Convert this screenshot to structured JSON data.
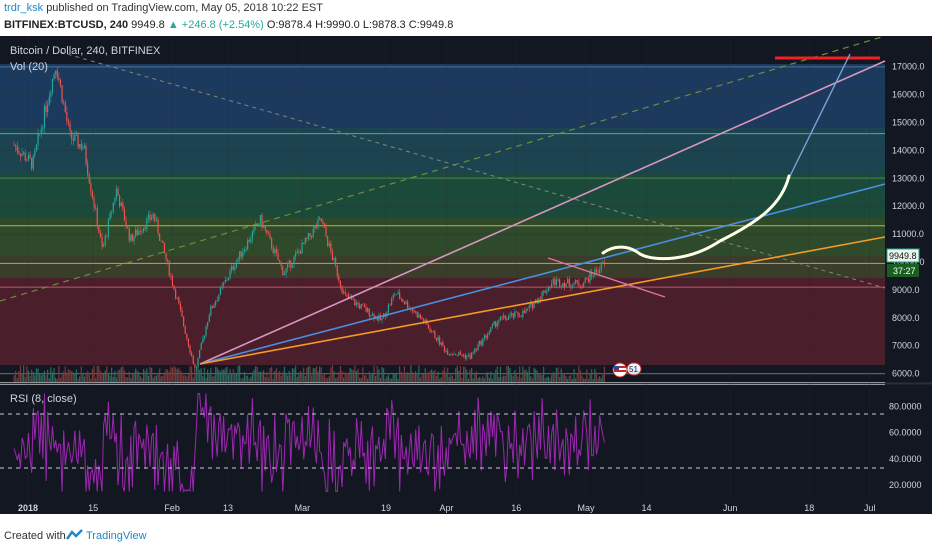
{
  "header": {
    "author": "trdr_ksk",
    "published": "published on TradingView.com, May 05, 2018 10:22 EST",
    "symbol": "BITFINEX:BTCUSD, 240",
    "price": "9949.8",
    "change": "▲ +246.8 (+2.54%)",
    "ohlc": "O:9878.4 H:9990.0 L:9878.3 C:9949.8"
  },
  "footer": {
    "created_with": "Created with",
    "brand": "TradingView"
  },
  "chart_data": [
    {
      "type": "candlestick",
      "title": "Bitcoin / Dollar, 240, BITFINEX",
      "indicator_label": "Vol (20)",
      "x_tick_labels": [
        "2018",
        "15",
        "Feb",
        "13",
        "Mar",
        "19",
        "Apr",
        "16",
        "May",
        "14",
        "Jun",
        "18",
        "Jul"
      ],
      "y_tick_labels": [
        "17000.0",
        "16000.0",
        "15000.0",
        "14000.0",
        "13000.0",
        "12000.0",
        "11000.0",
        "10000.0",
        "9000.0",
        "8000.0",
        "7000.0",
        "6000.0"
      ],
      "ylim": [
        5700,
        18100
      ],
      "last_price_label": "9949.8",
      "countdown_label": "37:27",
      "badge": "51",
      "fib_levels": [
        17000,
        14600,
        13000,
        11300,
        9950,
        9100,
        6000
      ],
      "close_path": [
        {
          "x": "2017-12-29",
          "y": 14200
        },
        {
          "x": "2018-01-02",
          "y": 13500
        },
        {
          "x": "2018-01-07",
          "y": 17100
        },
        {
          "x": "2018-01-10",
          "y": 14500
        },
        {
          "x": "2018-01-13",
          "y": 14100
        },
        {
          "x": "2018-01-17",
          "y": 10400
        },
        {
          "x": "2018-01-20",
          "y": 12600
        },
        {
          "x": "2018-01-23",
          "y": 10800
        },
        {
          "x": "2018-01-28",
          "y": 11700
        },
        {
          "x": "2018-02-02",
          "y": 8700
        },
        {
          "x": "2018-02-06",
          "y": 6100
        },
        {
          "x": "2018-02-09",
          "y": 8200
        },
        {
          "x": "2018-02-14",
          "y": 9800
        },
        {
          "x": "2018-02-20",
          "y": 11500
        },
        {
          "x": "2018-02-25",
          "y": 9600
        },
        {
          "x": "2018-03-05",
          "y": 11500
        },
        {
          "x": "2018-03-10",
          "y": 8800
        },
        {
          "x": "2018-03-18",
          "y": 7900
        },
        {
          "x": "2018-03-21",
          "y": 8900
        },
        {
          "x": "2018-03-27",
          "y": 7900
        },
        {
          "x": "2018-04-01",
          "y": 6800
        },
        {
          "x": "2018-04-06",
          "y": 6600
        },
        {
          "x": "2018-04-12",
          "y": 7900
        },
        {
          "x": "2018-04-18",
          "y": 8200
        },
        {
          "x": "2018-04-24",
          "y": 9300
        },
        {
          "x": "2018-04-30",
          "y": 9200
        },
        {
          "x": "2018-05-05",
          "y": 9950
        }
      ]
    },
    {
      "type": "line",
      "title": "RSI (8, close)",
      "y_tick_labels": [
        "80.0000",
        "60.0000",
        "40.0000",
        "20.0000"
      ],
      "ylim": [
        10,
        95
      ],
      "bands": [
        70,
        30
      ],
      "color": "#9c27b0"
    }
  ]
}
